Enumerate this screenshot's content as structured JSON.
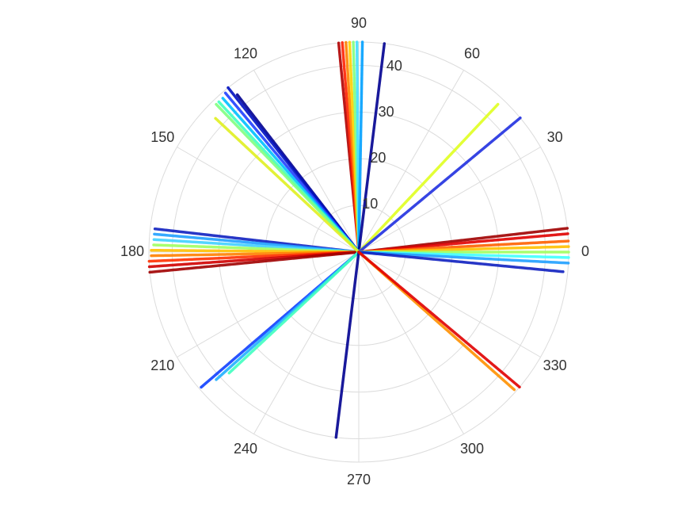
{
  "chart_data": {
    "type": "polar",
    "rlim": [
      0,
      45
    ],
    "rticks": [
      10,
      20,
      30,
      40
    ],
    "thetaticks": [
      0,
      30,
      60,
      90,
      120,
      150,
      180,
      210,
      240,
      270,
      300,
      330
    ],
    "grid": true,
    "series": [
      {
        "color": "#b00000",
        "theta": [
          95.5,
          95.5
        ],
        "r": [
          0,
          45
        ]
      },
      {
        "color": "#ff2000",
        "theta": [
          94.5,
          94.5
        ],
        "r": [
          0,
          45
        ]
      },
      {
        "color": "#ff8000",
        "theta": [
          93.5,
          93.5
        ],
        "r": [
          0,
          45
        ]
      },
      {
        "color": "#ffd000",
        "theta": [
          92.5,
          92.5
        ],
        "r": [
          0,
          45
        ]
      },
      {
        "color": "#80ff80",
        "theta": [
          91.5,
          91.5
        ],
        "r": [
          0,
          45
        ]
      },
      {
        "color": "#40e0ff",
        "theta": [
          90.5,
          90.5
        ],
        "r": [
          0,
          45
        ]
      },
      {
        "color": "#00a0ff",
        "theta": [
          89,
          89
        ],
        "r": [
          0,
          45
        ]
      },
      {
        "color": "#000090",
        "theta": [
          83,
          83
        ],
        "r": [
          0,
          45
        ]
      },
      {
        "color": "#e0ff20",
        "theta": [
          46.7,
          46.7
        ],
        "r": [
          0,
          43.5
        ]
      },
      {
        "color": "#2030e0",
        "theta": [
          39.7,
          39.7
        ],
        "r": [
          0,
          45
        ]
      },
      {
        "color": "#a00000",
        "theta": [
          6.5,
          6.5
        ],
        "r": [
          0,
          45
        ]
      },
      {
        "color": "#e00000",
        "theta": [
          5,
          5
        ],
        "r": [
          0,
          45
        ]
      },
      {
        "color": "#ff6000",
        "theta": [
          3,
          3
        ],
        "r": [
          0,
          45
        ]
      },
      {
        "color": "#ffc000",
        "theta": [
          1.5,
          1.5
        ],
        "r": [
          0,
          45
        ]
      },
      {
        "color": "#a0ff60",
        "theta": [
          0,
          0
        ],
        "r": [
          0,
          45
        ]
      },
      {
        "color": "#40ffff",
        "theta": [
          -1.5,
          -1.5
        ],
        "r": [
          0,
          45
        ]
      },
      {
        "color": "#20a0ff",
        "theta": [
          -3,
          -3
        ],
        "r": [
          0,
          45
        ]
      },
      {
        "color": "#1020c0",
        "theta": [
          -5.5,
          -5.5
        ],
        "r": [
          0,
          44
        ]
      },
      {
        "color": "#1020c0",
        "theta": [
          173.5,
          173.5
        ],
        "r": [
          0,
          44
        ]
      },
      {
        "color": "#20a0ff",
        "theta": [
          175,
          175
        ],
        "r": [
          0,
          44
        ]
      },
      {
        "color": "#40d0ff",
        "theta": [
          176.5,
          176.5
        ],
        "r": [
          0,
          44
        ]
      },
      {
        "color": "#a0ff60",
        "theta": [
          178,
          178
        ],
        "r": [
          0,
          44
        ]
      },
      {
        "color": "#ffc000",
        "theta": [
          179.5,
          179.5
        ],
        "r": [
          0,
          44.5
        ]
      },
      {
        "color": "#ff8000",
        "theta": [
          181,
          181
        ],
        "r": [
          0,
          44.5
        ]
      },
      {
        "color": "#ff3000",
        "theta": [
          182.5,
          182.5
        ],
        "r": [
          0,
          45
        ]
      },
      {
        "color": "#d00000",
        "theta": [
          184,
          184
        ],
        "r": [
          0,
          45
        ]
      },
      {
        "color": "#a00000",
        "theta": [
          185.5,
          185.5
        ],
        "r": [
          0,
          45
        ]
      },
      {
        "color": "#000090",
        "theta": [
          127.7,
          127.7
        ],
        "r": [
          0,
          42.6
        ]
      },
      {
        "color": "#0010c0",
        "theta": [
          128.5,
          128.5
        ],
        "r": [
          0,
          45
        ]
      },
      {
        "color": "#2040ff",
        "theta": [
          130,
          130
        ],
        "r": [
          0,
          44.5
        ]
      },
      {
        "color": "#00c0ff",
        "theta": [
          131.5,
          131.5
        ],
        "r": [
          0,
          44
        ]
      },
      {
        "color": "#40ffc0",
        "theta": [
          133,
          133
        ],
        "r": [
          0,
          44
        ]
      },
      {
        "color": "#80ff80",
        "theta": [
          134,
          134
        ],
        "r": [
          0,
          44
        ]
      },
      {
        "color": "#e0f020",
        "theta": [
          137,
          137
        ],
        "r": [
          0,
          42
        ]
      },
      {
        "color": "#1040ff",
        "theta": [
          220.6,
          220.6
        ],
        "r": [
          0,
          44.5
        ]
      },
      {
        "color": "#20b0ff",
        "theta": [
          221.8,
          221.8
        ],
        "r": [
          0,
          41
        ]
      },
      {
        "color": "#40ffc0",
        "theta": [
          223,
          223
        ],
        "r": [
          0,
          38
        ]
      },
      {
        "color": "#000090",
        "theta": [
          263,
          263
        ],
        "r": [
          0,
          40
        ]
      },
      {
        "color": "#ff9000",
        "theta": [
          318.5,
          318.5
        ],
        "r": [
          0,
          44.5
        ]
      },
      {
        "color": "#e00000",
        "theta": [
          320,
          320
        ],
        "r": [
          0,
          45
        ]
      }
    ]
  }
}
